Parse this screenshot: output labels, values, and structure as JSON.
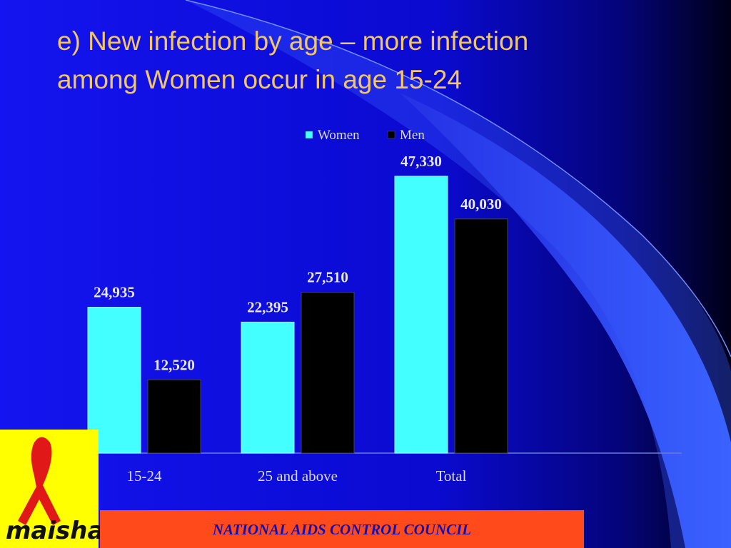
{
  "chart_data": {
    "type": "bar",
    "title": [
      "e)  New infection by age – more infection",
      "among Women occur in age 15-24"
    ],
    "categories": [
      "15-24",
      "25 and above",
      "Total"
    ],
    "series": [
      {
        "name": "Women",
        "color": "#44ffff",
        "values": [
          24935,
          22395,
          47330
        ],
        "value_labels": [
          "24,935",
          "22,395",
          "47,330"
        ]
      },
      {
        "name": "Men",
        "color": "#000000",
        "values": [
          12520,
          27510,
          40030
        ],
        "value_labels": [
          "12,520",
          "27,510",
          "40,030"
        ]
      }
    ]
  },
  "footer": {
    "text": "NATIONAL AIDS CONTROL COUNCIL"
  },
  "logo": {
    "text": "maisha!"
  }
}
